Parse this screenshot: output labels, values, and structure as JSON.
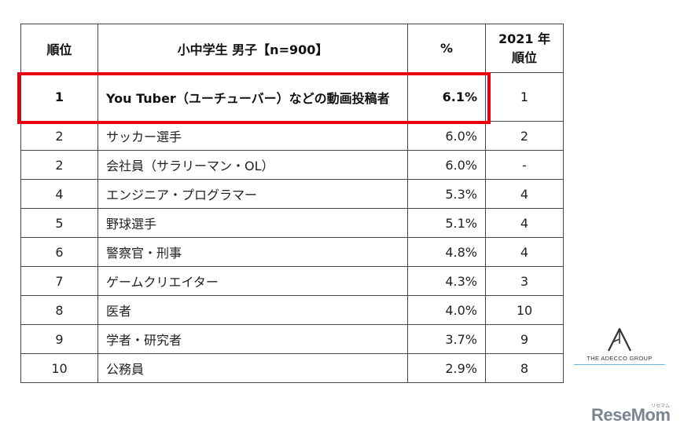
{
  "table": {
    "headers": {
      "rank": "順位",
      "occupation": "小中学生 男子【n=900】",
      "percent": "%",
      "prev_line1": "2021 年",
      "prev_line2": "順位"
    },
    "rows": [
      {
        "rank": "1",
        "occupation": "You Tuber（ユーチューバー）などの動画投稿者",
        "percent": "6.1%",
        "prev": "1"
      },
      {
        "rank": "2",
        "occupation": "サッカー選手",
        "percent": "6.0%",
        "prev": "2"
      },
      {
        "rank": "2",
        "occupation": "会社員（サラリーマン・OL）",
        "percent": "6.0%",
        "prev": "-"
      },
      {
        "rank": "4",
        "occupation": "エンジニア・プログラマー",
        "percent": "5.3%",
        "prev": "4"
      },
      {
        "rank": "5",
        "occupation": "野球選手",
        "percent": "5.1%",
        "prev": "4"
      },
      {
        "rank": "6",
        "occupation": "警察官・刑事",
        "percent": "4.8%",
        "prev": "4"
      },
      {
        "rank": "7",
        "occupation": "ゲームクリエイター",
        "percent": "4.3%",
        "prev": "3"
      },
      {
        "rank": "8",
        "occupation": "医者",
        "percent": "4.0%",
        "prev": "10"
      },
      {
        "rank": "9",
        "occupation": "学者・研究者",
        "percent": "3.7%",
        "prev": "9"
      },
      {
        "rank": "10",
        "occupation": "公務員",
        "percent": "2.9%",
        "prev": "8"
      }
    ]
  },
  "logos": {
    "adecco_text": "THE ADECCO GROUP",
    "resemom": "ReseMom",
    "resemom_kana": "リセマム"
  },
  "colors": {
    "highlight": "#e60012",
    "logo_gray": "#7a8591"
  }
}
